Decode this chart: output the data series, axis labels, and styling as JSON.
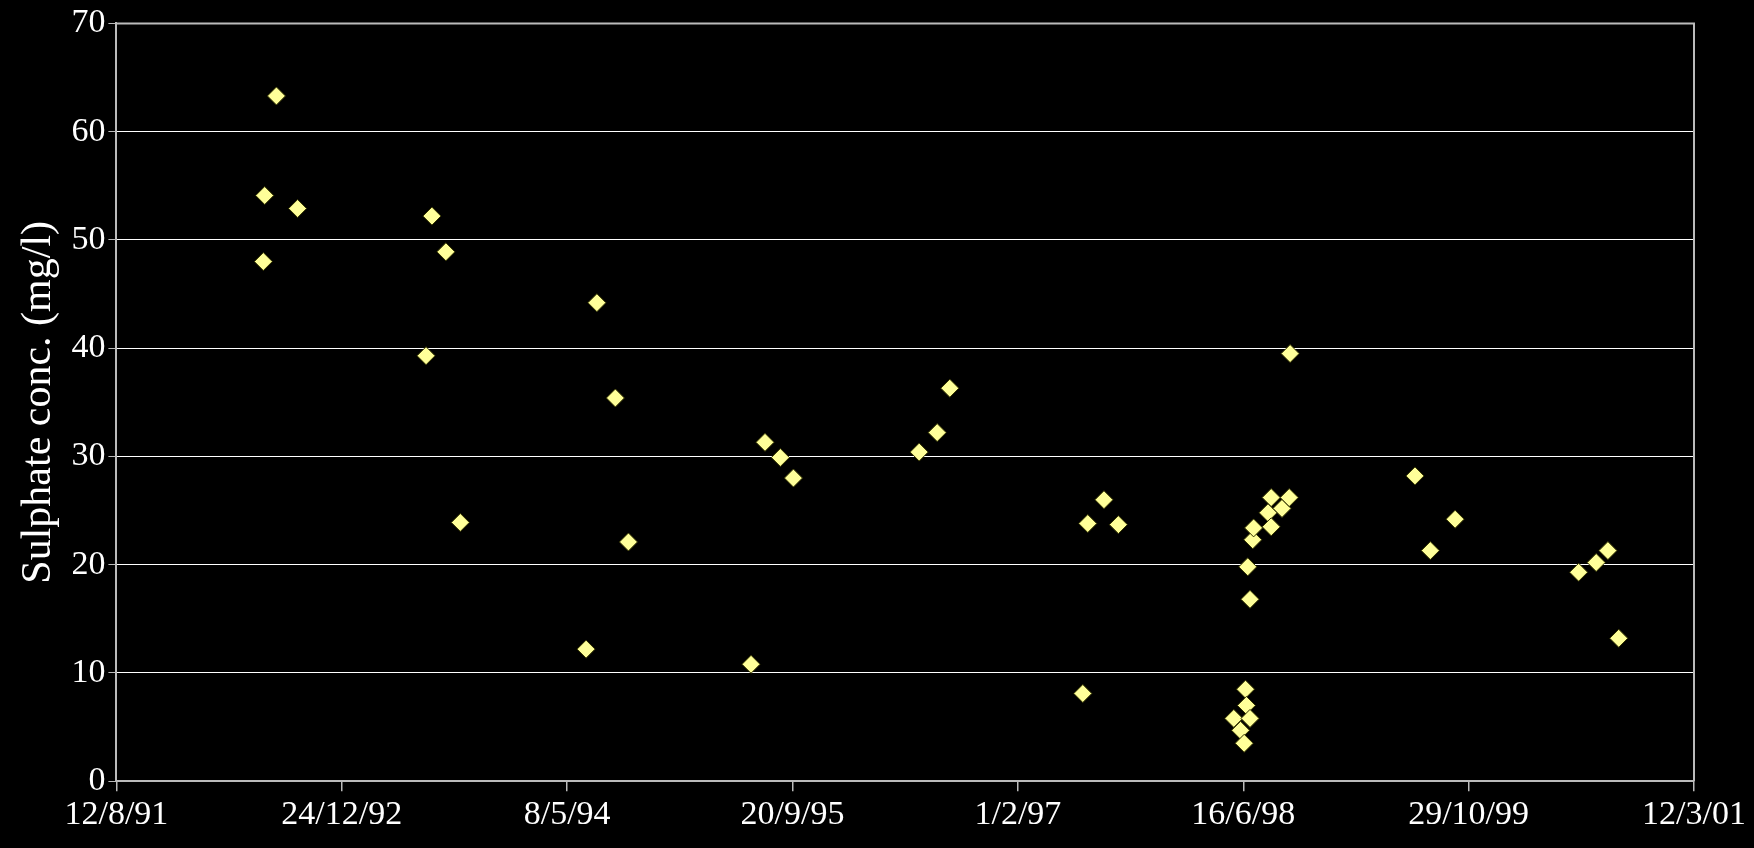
{
  "chart_data": {
    "type": "scatter",
    "ylabel": "Sulphate conc. (mg/l)",
    "x": [
      "1992-07-03",
      "1992-07-06",
      "1992-08-01",
      "1992-09-17",
      "1993-06-29",
      "1993-07-12",
      "1993-08-12",
      "1993-09-13",
      "1994-06-19",
      "1994-07-13",
      "1994-08-23",
      "1994-09-21",
      "1995-06-20",
      "1995-07-21",
      "1995-08-24",
      "1995-09-22",
      "1996-06-27",
      "1996-08-06",
      "1996-09-03",
      "1997-06-25",
      "1997-07-06",
      "1997-08-11",
      "1997-09-12",
      "1998-05-26",
      "1998-06-10",
      "1998-06-18",
      "1998-06-21",
      "1998-06-23",
      "1998-06-26",
      "1998-07-01",
      "1998-07-01",
      "1998-07-07",
      "1998-07-09",
      "1998-08-10",
      "1998-08-17",
      "1998-08-17",
      "1998-09-10",
      "1998-09-26",
      "1998-09-28",
      "1999-07-02",
      "1999-08-05",
      "1999-09-29",
      "2000-06-29",
      "2000-08-07",
      "2000-09-02",
      "2000-09-26"
    ],
    "series": [
      {
        "color": "#ffff99",
        "values": [
          48.0,
          54.1,
          63.3,
          52.9,
          39.3,
          52.2,
          48.9,
          23.9,
          12.2,
          44.2,
          35.4,
          22.1,
          10.8,
          31.3,
          29.9,
          28.0,
          30.4,
          32.2,
          36.3,
          8.1,
          23.8,
          26.0,
          23.7,
          5.8,
          4.7,
          3.5,
          8.5,
          7.0,
          19.8,
          16.8,
          5.8,
          22.3,
          23.4,
          24.8,
          23.5,
          26.2,
          25.2,
          26.2,
          39.5,
          28.2,
          21.3,
          24.2,
          19.3,
          20.2,
          21.3,
          13.2
        ]
      }
    ],
    "xlim": [
      "1991-08-12",
      "2001-03-12"
    ],
    "xticks": [
      {
        "value": "1991-08-12",
        "label": "12/8/91"
      },
      {
        "value": "1992-12-24",
        "label": "24/12/92"
      },
      {
        "value": "1994-05-08",
        "label": "8/5/94"
      },
      {
        "value": "1995-09-20",
        "label": "20/9/95"
      },
      {
        "value": "1997-02-01",
        "label": "1/2/97"
      },
      {
        "value": "1998-06-16",
        "label": "16/6/98"
      },
      {
        "value": "1999-10-29",
        "label": "29/10/99"
      },
      {
        "value": "2001-03-12",
        "label": "12/3/01"
      }
    ],
    "ylim": [
      0,
      70
    ],
    "yticks": [
      0,
      10,
      20,
      30,
      40,
      50,
      60,
      70
    ],
    "grid": "y",
    "legend": false,
    "marker": "diamond"
  }
}
